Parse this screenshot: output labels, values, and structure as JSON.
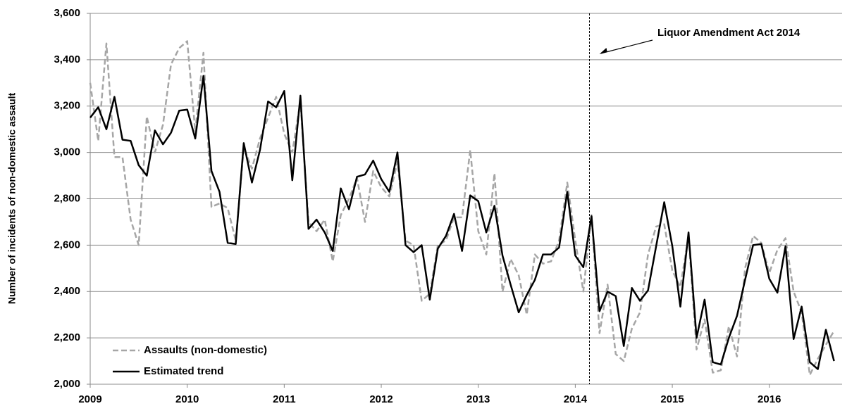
{
  "chart_data": {
    "type": "line",
    "y_label": "Number of incidents of non-domestic assault",
    "x": [
      2009,
      2009.083,
      2009.167,
      2009.25,
      2009.333,
      2009.417,
      2009.5,
      2009.583,
      2009.667,
      2009.75,
      2009.833,
      2009.917,
      2010,
      2010.083,
      2010.167,
      2010.25,
      2010.333,
      2010.417,
      2010.5,
      2010.583,
      2010.667,
      2010.75,
      2010.833,
      2010.917,
      2011,
      2011.083,
      2011.167,
      2011.25,
      2011.333,
      2011.417,
      2011.5,
      2011.583,
      2011.667,
      2011.75,
      2011.833,
      2011.917,
      2012,
      2012.083,
      2012.167,
      2012.25,
      2012.333,
      2012.417,
      2012.5,
      2012.583,
      2012.667,
      2012.75,
      2012.833,
      2012.917,
      2013,
      2013.083,
      2013.167,
      2013.25,
      2013.333,
      2013.417,
      2013.5,
      2013.583,
      2013.667,
      2013.75,
      2013.833,
      2013.917,
      2014,
      2014.083,
      2014.167,
      2014.25,
      2014.333,
      2014.417,
      2014.5,
      2014.583,
      2014.667,
      2014.75,
      2014.833,
      2014.917,
      2015,
      2015.083,
      2015.167,
      2015.25,
      2015.333,
      2015.417,
      2015.5,
      2015.583,
      2015.667,
      2015.75,
      2015.833,
      2015.917,
      2016,
      2016.083,
      2016.167,
      2016.25,
      2016.333,
      2016.417,
      2016.5,
      2016.583,
      2016.667
    ],
    "series": [
      {
        "name": "Assaults (non-domestic)",
        "color": "#a6a6a6",
        "dash": true,
        "values": [
          3300,
          3050,
          3470,
          2980,
          2980,
          2710,
          2600,
          3155,
          3000,
          3120,
          3380,
          3450,
          3480,
          3090,
          3430,
          2765,
          2780,
          2760,
          2620,
          3020,
          2930,
          3060,
          3150,
          3240,
          3080,
          3000,
          3220,
          2700,
          2660,
          2710,
          2530,
          2730,
          2800,
          2890,
          2700,
          2920,
          2850,
          2810,
          2960,
          2620,
          2600,
          2360,
          2390,
          2600,
          2620,
          2720,
          2720,
          3010,
          2660,
          2560,
          2910,
          2400,
          2540,
          2470,
          2300,
          2560,
          2520,
          2530,
          2620,
          2870,
          2620,
          2400,
          2730,
          2220,
          2430,
          2130,
          2100,
          2240,
          2310,
          2560,
          2680,
          2690,
          2490,
          2420,
          2640,
          2150,
          2280,
          2050,
          2060,
          2250,
          2120,
          2500,
          2640,
          2610,
          2480,
          2580,
          2630,
          2400,
          2310,
          2040,
          2110,
          2170,
          2230
        ]
      },
      {
        "name": "Estimated trend",
        "color": "#000000",
        "dash": false,
        "values": [
          3150,
          3195,
          3100,
          3240,
          3055,
          3050,
          2945,
          2900,
          3095,
          3035,
          3085,
          3180,
          3185,
          3060,
          3330,
          2920,
          2830,
          2610,
          2605,
          3040,
          2870,
          3010,
          3220,
          3195,
          3265,
          2880,
          3245,
          2670,
          2710,
          2655,
          2575,
          2845,
          2755,
          2895,
          2905,
          2965,
          2885,
          2830,
          3000,
          2600,
          2570,
          2600,
          2365,
          2585,
          2640,
          2735,
          2575,
          2815,
          2790,
          2655,
          2770,
          2555,
          2430,
          2310,
          2385,
          2450,
          2560,
          2560,
          2590,
          2830,
          2555,
          2505,
          2725,
          2315,
          2400,
          2380,
          2165,
          2415,
          2360,
          2405,
          2595,
          2785,
          2595,
          2335,
          2655,
          2200,
          2365,
          2095,
          2085,
          2200,
          2295,
          2450,
          2600,
          2605,
          2455,
          2395,
          2595,
          2195,
          2335,
          2095,
          2065,
          2235,
          2100
        ]
      }
    ],
    "xlim": [
      2009,
      2016.75
    ],
    "xticks": [
      2009,
      2010,
      2011,
      2012,
      2013,
      2014,
      2015,
      2016
    ],
    "ylim": [
      2000,
      3600
    ],
    "yticks": [
      {
        "value": 2000,
        "label": "2,000"
      },
      {
        "value": 2200,
        "label": "2,200"
      },
      {
        "value": 2400,
        "label": "2,400"
      },
      {
        "value": 2600,
        "label": "2,600"
      },
      {
        "value": 2800,
        "label": "2,800"
      },
      {
        "value": 3000,
        "label": "3,000"
      },
      {
        "value": 3200,
        "label": "3,200"
      },
      {
        "value": 3400,
        "label": "3,400"
      },
      {
        "value": 3600,
        "label": "3,600"
      }
    ],
    "grid": true,
    "legend": "lower left",
    "event": {
      "label": "Liquor Amendment Act 2014",
      "x": 2014.146
    }
  }
}
